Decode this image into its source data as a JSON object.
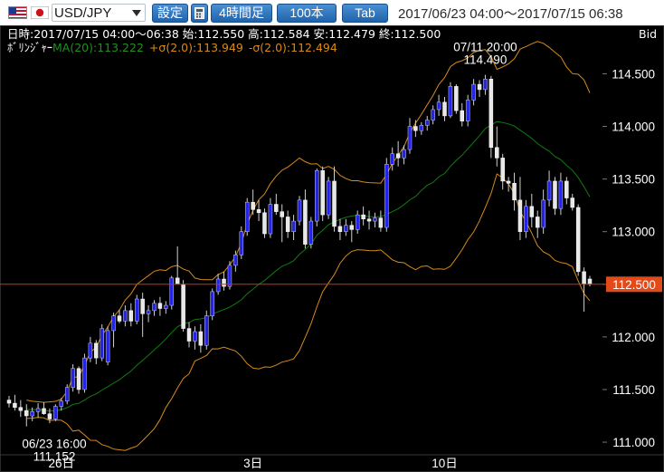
{
  "toolbar": {
    "pair": "USD/JPY",
    "settings_label": "設定",
    "calc_label": "▦",
    "timeframe_label": "4時間足",
    "count_label": "100本",
    "tab_label": "Tab",
    "range": "2017/06/23 04:00～2017/07/15 06:38"
  },
  "info": {
    "line1": "日時:2017/07/15 04:00～06:38 始:112.550 高:112.584 安:112.479 終:112.500",
    "bb_name": "ﾎﾞﾘﾝｼﾞｬｰ",
    "bb_ma": "MA(20):113.222",
    "bb_upper": "+σ(2.0):113.949",
    "bb_lower": "-σ(2.0):112.494",
    "bid": "Bid"
  },
  "annotations": {
    "high_time": "07/11 20:00",
    "high_value": "114.490",
    "low_time": "06/23 16:00",
    "low_value": "111.152"
  },
  "current_price": "112.500",
  "chart_data": {
    "type": "candlestick",
    "y_ticks": [
      "114.500",
      "114.000",
      "113.500",
      "113.000",
      "112.500",
      "112.000",
      "111.500",
      "111.000"
    ],
    "y_tick_values": [
      114.5,
      114.0,
      113.5,
      113.0,
      112.5,
      112.0,
      111.5,
      111.0
    ],
    "ylim": [
      110.88,
      114.96
    ],
    "x_labels": [
      {
        "index": 9,
        "label": "26日"
      },
      {
        "index": 42,
        "label": "3日"
      },
      {
        "index": 75,
        "label": "10日"
      }
    ],
    "current_price": 112.5,
    "colors": {
      "up": "#2424e6",
      "down": "#e8e8e8",
      "ma": "#117a11",
      "band": "#d88a18",
      "price_line": "#d62f1a",
      "price_tag": "#e24a1a"
    },
    "candles": [
      [
        111.4,
        111.44,
        111.33,
        111.37
      ],
      [
        111.37,
        111.45,
        111.3,
        111.33
      ],
      [
        111.33,
        111.4,
        111.24,
        111.3
      ],
      [
        111.3,
        111.36,
        111.15,
        111.25
      ],
      [
        111.25,
        111.33,
        111.2,
        111.29
      ],
      [
        111.29,
        111.37,
        111.23,
        111.32
      ],
      [
        111.32,
        111.38,
        111.26,
        111.27
      ],
      [
        111.27,
        111.32,
        111.18,
        111.22
      ],
      [
        111.22,
        111.36,
        111.2,
        111.34
      ],
      [
        111.34,
        111.42,
        111.3,
        111.39
      ],
      [
        111.39,
        111.55,
        111.36,
        111.52
      ],
      [
        111.52,
        111.74,
        111.48,
        111.7
      ],
      [
        111.7,
        111.72,
        111.46,
        111.5
      ],
      [
        111.5,
        111.84,
        111.47,
        111.8
      ],
      [
        111.8,
        112.0,
        111.76,
        111.94
      ],
      [
        111.94,
        111.97,
        111.74,
        111.8
      ],
      [
        111.8,
        112.12,
        111.77,
        112.08
      ],
      [
        111.76,
        112.1,
        111.73,
        112.06
      ],
      [
        112.06,
        112.23,
        111.9,
        112.2
      ],
      [
        112.2,
        112.26,
        112.13,
        112.15
      ],
      [
        112.15,
        112.3,
        112.1,
        112.25
      ],
      [
        112.25,
        112.32,
        112.1,
        112.15
      ],
      [
        112.15,
        112.4,
        112.12,
        112.36
      ],
      [
        112.36,
        112.42,
        112.0,
        112.22
      ],
      [
        112.22,
        112.3,
        112.14,
        112.25
      ],
      [
        112.25,
        112.35,
        112.2,
        112.32
      ],
      [
        112.32,
        112.38,
        112.2,
        112.27
      ],
      [
        112.27,
        112.34,
        112.22,
        112.3
      ],
      [
        112.3,
        112.58,
        112.26,
        112.56
      ],
      [
        112.56,
        112.86,
        112.5,
        112.5
      ],
      [
        112.5,
        112.54,
        112.05,
        112.08
      ],
      [
        112.08,
        112.14,
        111.9,
        111.96
      ],
      [
        111.96,
        112.1,
        111.88,
        112.05
      ],
      [
        112.05,
        112.12,
        111.85,
        111.92
      ],
      [
        111.92,
        112.25,
        111.88,
        112.2
      ],
      [
        112.2,
        112.46,
        112.16,
        112.43
      ],
      [
        112.43,
        112.6,
        112.4,
        112.55
      ],
      [
        112.55,
        112.62,
        112.44,
        112.48
      ],
      [
        112.48,
        112.72,
        112.45,
        112.68
      ],
      [
        112.68,
        112.82,
        112.62,
        112.78
      ],
      [
        112.78,
        113.05,
        112.74,
        113.0
      ],
      [
        113.0,
        113.32,
        112.96,
        113.28
      ],
      [
        113.28,
        113.4,
        113.16,
        113.21
      ],
      [
        113.21,
        113.3,
        113.1,
        113.18
      ],
      [
        113.18,
        113.22,
        112.94,
        112.98
      ],
      [
        112.98,
        113.32,
        112.94,
        113.26
      ],
      [
        113.26,
        113.36,
        113.16,
        113.19
      ],
      [
        113.19,
        113.26,
        112.9,
        113.14
      ],
      [
        113.14,
        113.2,
        112.94,
        113.0
      ],
      [
        113.0,
        113.16,
        112.92,
        113.1
      ],
      [
        113.1,
        113.34,
        113.06,
        113.3
      ],
      [
        113.3,
        113.4,
        112.84,
        112.88
      ],
      [
        112.88,
        113.14,
        112.84,
        113.1
      ],
      [
        113.1,
        113.6,
        113.05,
        113.58
      ],
      [
        113.58,
        113.62,
        113.1,
        113.16
      ],
      [
        113.16,
        113.52,
        113.12,
        113.48
      ],
      [
        113.48,
        113.62,
        113.0,
        113.05
      ],
      [
        113.05,
        113.12,
        112.92,
        113.0
      ],
      [
        113.0,
        113.12,
        112.96,
        113.06
      ],
      [
        113.06,
        113.1,
        112.9,
        113.02
      ],
      [
        113.02,
        113.2,
        112.98,
        113.16
      ],
      [
        113.16,
        113.24,
        113.06,
        113.12
      ],
      [
        113.12,
        113.2,
        113.02,
        113.1
      ],
      [
        113.1,
        113.18,
        113.04,
        113.13
      ],
      [
        113.13,
        113.2,
        113.0,
        113.04
      ],
      [
        113.04,
        113.7,
        113.0,
        113.64
      ],
      [
        113.64,
        113.8,
        113.58,
        113.74
      ],
      [
        113.74,
        113.86,
        113.62,
        113.7
      ],
      [
        113.7,
        113.82,
        113.64,
        113.78
      ],
      [
        113.78,
        114.08,
        113.74,
        114.0
      ],
      [
        114.0,
        114.06,
        113.9,
        113.96
      ],
      [
        113.96,
        114.04,
        113.92,
        114.01
      ],
      [
        114.01,
        114.1,
        113.96,
        114.06
      ],
      [
        114.06,
        114.2,
        114.02,
        114.16
      ],
      [
        114.16,
        114.3,
        114.1,
        114.23
      ],
      [
        114.23,
        114.28,
        114.05,
        114.1
      ],
      [
        114.1,
        114.42,
        114.08,
        114.38
      ],
      [
        114.38,
        114.4,
        114.12,
        114.15
      ],
      [
        114.15,
        114.22,
        114.0,
        114.05
      ],
      [
        114.05,
        114.3,
        114.0,
        114.25
      ],
      [
        114.25,
        114.45,
        114.2,
        114.4
      ],
      [
        114.4,
        114.44,
        114.28,
        114.35
      ],
      [
        114.35,
        114.49,
        114.3,
        114.45
      ],
      [
        114.45,
        114.48,
        113.7,
        113.8
      ],
      [
        113.8,
        114.0,
        113.62,
        113.7
      ],
      [
        113.7,
        113.74,
        113.4,
        113.48
      ],
      [
        113.48,
        113.52,
        113.38,
        113.46
      ],
      [
        113.46,
        113.56,
        113.2,
        113.3
      ],
      [
        113.3,
        113.52,
        112.92,
        113.0
      ],
      [
        113.0,
        113.3,
        112.94,
        113.24
      ],
      [
        113.24,
        113.36,
        113.04,
        113.14
      ],
      [
        113.14,
        113.2,
        112.94,
        113.04
      ],
      [
        113.04,
        113.4,
        112.98,
        113.3
      ],
      [
        113.3,
        113.58,
        113.24,
        113.48
      ],
      [
        113.48,
        113.52,
        113.16,
        113.22
      ],
      [
        113.22,
        113.56,
        113.16,
        113.48
      ],
      [
        113.48,
        113.52,
        113.26,
        113.32
      ],
      [
        113.32,
        113.36,
        113.2,
        113.23
      ],
      [
        113.23,
        113.26,
        112.58,
        112.62
      ],
      [
        112.62,
        112.66,
        112.24,
        112.5
      ],
      [
        112.55,
        112.58,
        112.48,
        112.5
      ]
    ]
  }
}
